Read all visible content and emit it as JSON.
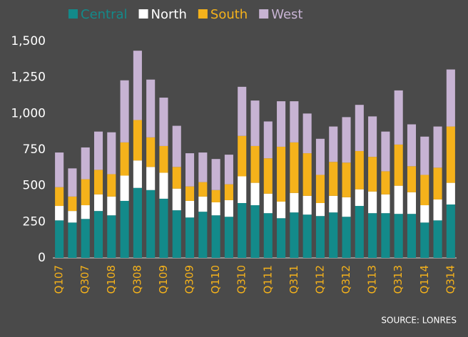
{
  "chart_data": {
    "type": "stacked_bar",
    "categories": [
      "Q107",
      null,
      "Q307",
      null,
      "Q108",
      null,
      "Q308",
      null,
      "Q109",
      null,
      "Q309",
      null,
      "Q110",
      null,
      "Q310",
      null,
      "Q111",
      null,
      "Q311",
      null,
      "Q112",
      null,
      "Q312",
      null,
      "Q113",
      null,
      "Q313",
      null,
      "Q114",
      null,
      "Q314"
    ],
    "series": [
      {
        "name": "Central",
        "color": "#138a8a",
        "values": [
          260,
          245,
          270,
          325,
          295,
          395,
          485,
          470,
          410,
          330,
          280,
          320,
          295,
          285,
          380,
          365,
          310,
          275,
          315,
          300,
          290,
          315,
          285,
          360,
          310,
          310,
          305,
          305,
          245,
          260,
          370
        ]
      },
      {
        "name": "North",
        "color": "#ffffff",
        "values": [
          100,
          80,
          95,
          115,
          130,
          175,
          190,
          160,
          180,
          150,
          115,
          105,
          90,
          115,
          185,
          155,
          135,
          115,
          135,
          130,
          90,
          115,
          135,
          115,
          150,
          130,
          195,
          150,
          120,
          145,
          150
        ]
      },
      {
        "name": "South",
        "color": "#f5b21b",
        "values": [
          130,
          100,
          180,
          170,
          155,
          230,
          280,
          205,
          185,
          150,
          100,
          100,
          85,
          110,
          280,
          255,
          245,
          380,
          350,
          295,
          195,
          235,
          240,
          265,
          240,
          160,
          285,
          180,
          210,
          220,
          390
        ]
      },
      {
        "name": "West",
        "color": "#c7b3d3",
        "values": [
          240,
          195,
          220,
          265,
          290,
          430,
          480,
          400,
          335,
          285,
          230,
          205,
          215,
          205,
          340,
          315,
          255,
          315,
          285,
          275,
          250,
          245,
          315,
          320,
          280,
          275,
          375,
          290,
          265,
          285,
          395
        ]
      }
    ],
    "ylim": [
      0,
      1500
    ],
    "yticks": [
      0,
      250,
      500,
      750,
      {
        "value": 1000,
        "label": "1,000"
      },
      {
        "value": 1250,
        "label": "1,250"
      },
      {
        "value": 1500,
        "label": "1,500"
      }
    ],
    "grid": false,
    "source": "SOURCE:  LONRES"
  }
}
